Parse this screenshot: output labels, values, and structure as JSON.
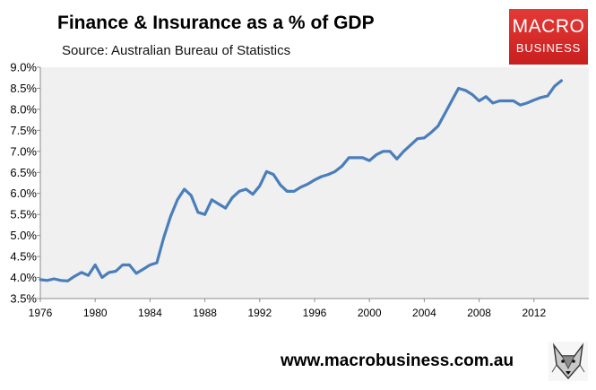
{
  "header": {
    "title": "Finance & Insurance as a % of GDP",
    "subtitle": "Source: Australian Bureau of Statistics"
  },
  "logo": {
    "line1": "MACRO",
    "line2": "BUSINESS"
  },
  "footer": {
    "website": "www.macrobusiness.com.au",
    "icon": "wolf-icon"
  },
  "colors": {
    "line": "#4a7ebb",
    "plot_bg": "#f0f0f0",
    "logo_bg": "#d42a29"
  },
  "chart_data": {
    "type": "line",
    "title": "Finance & Insurance as a % of GDP",
    "xlabel": "",
    "ylabel": "",
    "xlim": [
      1976,
      2016
    ],
    "ylim": [
      3.5,
      9.0
    ],
    "grid": false,
    "legend": "none",
    "x_ticks": [
      1976,
      1980,
      1984,
      1988,
      1992,
      1996,
      2000,
      2004,
      2008,
      2012
    ],
    "x_tick_labels": [
      "1976",
      "1980",
      "1984",
      "1988",
      "1992",
      "1996",
      "2000",
      "2004",
      "2008",
      "2012"
    ],
    "y_ticks": [
      3.5,
      4.0,
      4.5,
      5.0,
      5.5,
      6.0,
      6.5,
      7.0,
      7.5,
      8.0,
      8.5,
      9.0
    ],
    "y_tick_labels": [
      "3.5%",
      "4.0%",
      "4.5%",
      "5.0%",
      "5.5%",
      "6.0%",
      "6.5%",
      "7.0%",
      "7.5%",
      "8.0%",
      "8.5%",
      "9.0%"
    ],
    "series": [
      {
        "name": "Finance & Insurance share of GDP",
        "x": [
          1976.0,
          1976.5,
          1977.0,
          1977.5,
          1978.0,
          1978.5,
          1979.0,
          1979.5,
          1980.0,
          1980.5,
          1981.0,
          1981.5,
          1982.0,
          1982.5,
          1983.0,
          1983.5,
          1984.0,
          1984.5,
          1985.0,
          1985.5,
          1986.0,
          1986.5,
          1987.0,
          1987.5,
          1988.0,
          1988.5,
          1989.0,
          1989.5,
          1990.0,
          1990.5,
          1991.0,
          1991.5,
          1992.0,
          1992.5,
          1993.0,
          1993.5,
          1994.0,
          1994.5,
          1995.0,
          1995.5,
          1996.0,
          1996.5,
          1997.0,
          1997.5,
          1998.0,
          1998.5,
          1999.0,
          1999.5,
          2000.0,
          2000.5,
          2001.0,
          2001.5,
          2002.0,
          2002.5,
          2003.0,
          2003.5,
          2004.0,
          2004.5,
          2005.0,
          2005.5,
          2006.0,
          2006.5,
          2007.0,
          2007.5,
          2008.0,
          2008.5,
          2009.0,
          2009.5,
          2010.0,
          2010.5,
          2011.0,
          2011.5,
          2012.0,
          2012.5,
          2013.0,
          2013.5,
          2014.0
        ],
        "values": [
          3.95,
          3.93,
          3.97,
          3.93,
          3.92,
          4.03,
          4.12,
          4.05,
          4.3,
          4.0,
          4.12,
          4.15,
          4.3,
          4.3,
          4.1,
          4.2,
          4.3,
          4.35,
          4.95,
          5.45,
          5.85,
          6.1,
          5.95,
          5.55,
          5.5,
          5.85,
          5.75,
          5.65,
          5.9,
          6.05,
          6.1,
          5.98,
          6.18,
          6.52,
          6.45,
          6.2,
          6.05,
          6.05,
          6.15,
          6.22,
          6.32,
          6.4,
          6.45,
          6.52,
          6.65,
          6.85,
          6.85,
          6.85,
          6.78,
          6.92,
          7.0,
          7.0,
          6.82,
          7.0,
          7.15,
          7.3,
          7.32,
          7.45,
          7.6,
          7.9,
          8.2,
          8.5,
          8.45,
          8.35,
          8.2,
          8.3,
          8.15,
          8.2,
          8.2,
          8.2,
          8.1,
          8.15,
          8.22,
          8.28,
          8.32,
          8.55,
          8.68
        ]
      }
    ]
  }
}
